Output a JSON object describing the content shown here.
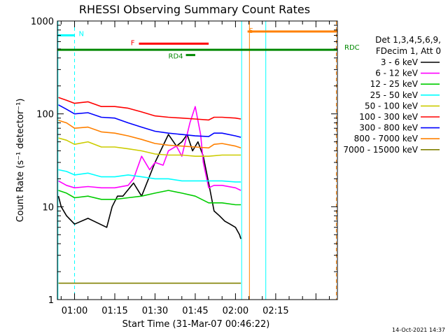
{
  "chart_data": {
    "type": "line",
    "title": "RHESSI Observing Summary Count Rates",
    "xlabel": "Start Time (31-Mar-07 00:46:22)",
    "ylabel": "Count Rate (s⁻¹ detector⁻¹)",
    "yscale": "log",
    "ylim": [
      1,
      1000
    ],
    "xlim_minutes": [
      -6.4,
      98
    ],
    "x_tick_labels": [
      "01:00",
      "01:15",
      "01:30",
      "01:45",
      "02:00",
      "02:15"
    ],
    "x_tick_minutes": [
      0,
      15,
      30,
      45,
      60,
      75
    ],
    "y_tick_labels": [
      "1",
      "10",
      "100",
      "1000"
    ],
    "y_tick_values": [
      1,
      10,
      100,
      1000
    ],
    "legend_header": [
      "Det 1,3,4,5,6,9,",
      "FDecim 1, Att 0"
    ],
    "legend_position": "right",
    "footer": "14-Oct-2021 14:37",
    "series": [
      {
        "name": "3 - 6 keV",
        "color": "#000000",
        "x": [
          -6,
          -5,
          -3,
          0,
          5,
          12,
          14,
          16,
          18,
          22,
          25,
          30,
          35,
          38,
          40,
          42,
          44,
          46,
          48,
          50,
          52,
          54,
          56,
          58,
          60,
          61.5,
          62
        ],
        "y": [
          13,
          10,
          8,
          6.5,
          7.5,
          6,
          10,
          13,
          13,
          18,
          13,
          30,
          60,
          45,
          50,
          60,
          40,
          50,
          35,
          18,
          9,
          8,
          7,
          6.5,
          6,
          5,
          4.5
        ]
      },
      {
        "name": "6 - 12 keV",
        "color": "#ff00ff",
        "x": [
          -6,
          -3,
          0,
          5,
          10,
          15,
          20,
          22,
          25,
          28,
          30,
          33,
          35,
          38,
          40,
          43,
          45,
          47,
          48,
          50,
          52,
          55,
          60,
          62
        ],
        "y": [
          19,
          17,
          16,
          16.5,
          16,
          16,
          17,
          20,
          35,
          25,
          30,
          28,
          40,
          45,
          35,
          80,
          120,
          60,
          30,
          16,
          17,
          17,
          16,
          15
        ]
      },
      {
        "name": "12 - 25 keV",
        "color": "#00cc00",
        "x": [
          -6,
          -3,
          0,
          5,
          10,
          15,
          20,
          25,
          30,
          35,
          40,
          45,
          50,
          55,
          60,
          62
        ],
        "y": [
          15,
          14,
          12.5,
          13,
          12,
          12,
          12.5,
          13,
          14,
          15,
          14,
          13,
          11,
          11,
          10.5,
          10.5
        ]
      },
      {
        "name": "25 - 50 keV",
        "color": "#00ffff",
        "x": [
          -6,
          -3,
          0,
          5,
          10,
          15,
          20,
          25,
          30,
          35,
          40,
          45,
          50,
          55,
          60,
          62
        ],
        "y": [
          25,
          24,
          22,
          23,
          21,
          21,
          22,
          21,
          20,
          20,
          19,
          19,
          19,
          19,
          18.5,
          18.5
        ]
      },
      {
        "name": "50 - 100 keV",
        "color": "#cccc00",
        "x": [
          -6,
          -3,
          0,
          5,
          10,
          15,
          20,
          25,
          30,
          35,
          40,
          45,
          50,
          55,
          60,
          62
        ],
        "y": [
          55,
          52,
          47,
          50,
          44,
          44,
          42,
          40,
          37,
          36,
          36,
          35,
          35,
          36,
          36,
          36
        ]
      },
      {
        "name": "100 - 300 keV",
        "color": "#ff0000",
        "x": [
          -6,
          -3,
          0,
          5,
          10,
          15,
          20,
          25,
          30,
          35,
          40,
          45,
          50,
          52,
          55,
          60,
          62
        ],
        "y": [
          150,
          140,
          130,
          135,
          120,
          120,
          115,
          105,
          95,
          92,
          90,
          88,
          86,
          92,
          92,
          90,
          88
        ]
      },
      {
        "name": "300 - 800 keV",
        "color": "#0000ff",
        "x": [
          -6,
          -3,
          0,
          5,
          10,
          15,
          20,
          25,
          30,
          35,
          40,
          45,
          50,
          52,
          55,
          60,
          62
        ],
        "y": [
          125,
          112,
          100,
          103,
          92,
          90,
          80,
          72,
          65,
          62,
          60,
          58,
          57,
          62,
          62,
          58,
          56
        ]
      },
      {
        "name": "800 - 7000 keV",
        "color": "#ff8000",
        "x": [
          -6,
          -3,
          0,
          5,
          10,
          15,
          20,
          25,
          30,
          35,
          40,
          45,
          50,
          52,
          55,
          60,
          62
        ],
        "y": [
          85,
          80,
          70,
          72,
          64,
          62,
          58,
          53,
          48,
          46,
          45,
          44,
          43,
          47,
          48,
          45,
          43
        ]
      },
      {
        "name": "7000 - 15000 keV",
        "color": "#808000",
        "x": [
          -6,
          62
        ],
        "y": [
          1.5,
          1.5
        ]
      }
    ],
    "annotations": [
      {
        "label": "N",
        "color": "#00ffff",
        "x_start": -6.4,
        "x_end": 0,
        "y": 700
      },
      {
        "label": "F",
        "color": "#ff0000",
        "x_start": 24,
        "x_end": 50,
        "y": 570
      },
      {
        "label": "RDC",
        "color": "#008800",
        "x_start": -6.4,
        "x_end": 98,
        "y": 490
      },
      {
        "label": "RD4",
        "color": "#008800",
        "x_start": 41.5,
        "x_end": 45,
        "y": 430
      },
      {
        "label": "S",
        "color": "#ff8000",
        "x_start": 64.5,
        "x_end": 98,
        "y": 770
      }
    ],
    "vertical_markers": [
      {
        "x": -6.2,
        "color": "#00ffff",
        "style": "solid"
      },
      {
        "x": 0,
        "color": "#00ffff",
        "style": "dashed"
      },
      {
        "x": 62.3,
        "color": "#00ffff",
        "style": "solid"
      },
      {
        "x": 65.2,
        "color": "#ff8000",
        "style": "solid"
      },
      {
        "x": 71.3,
        "color": "#00ffff",
        "style": "solid"
      },
      {
        "x": 97.6,
        "color": "#ff8000",
        "style": "dashed"
      }
    ]
  }
}
